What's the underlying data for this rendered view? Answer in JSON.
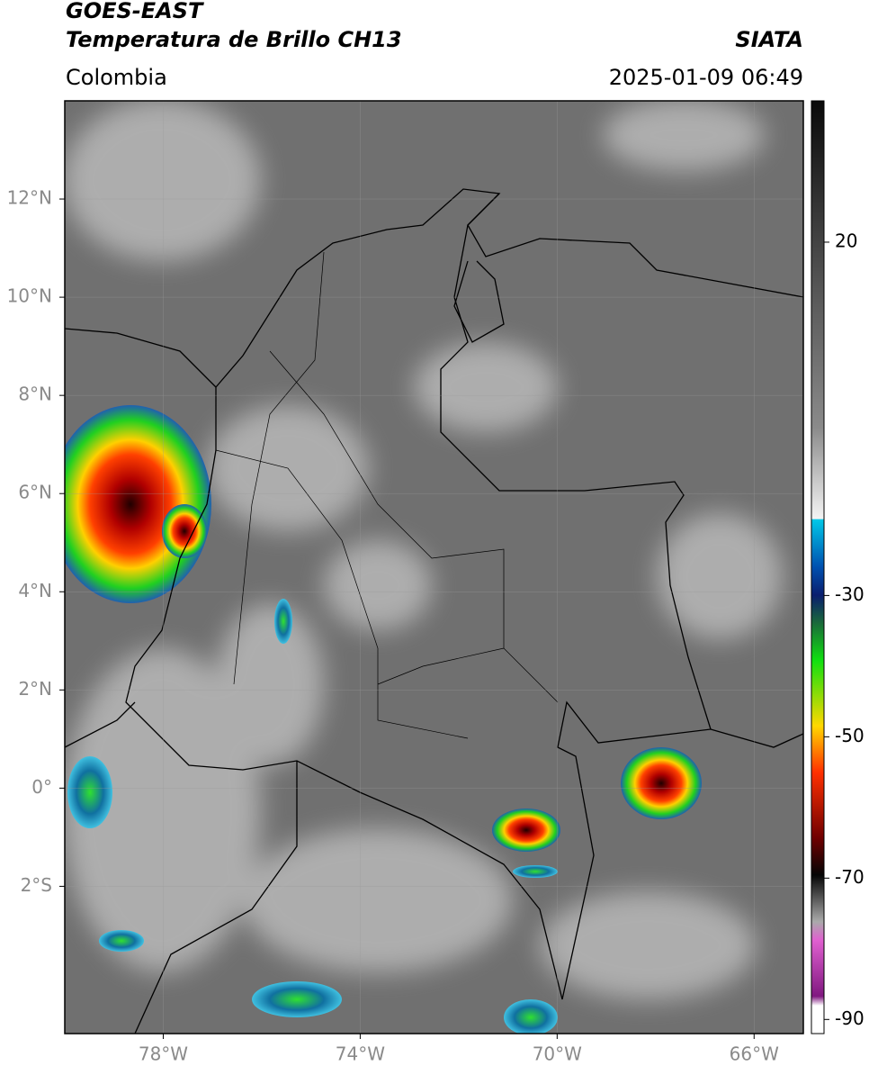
{
  "header": {
    "title": "GOES-EAST",
    "subtitle": "Temperatura de Brillo CH13",
    "source": "SIATA",
    "region": "Colombia",
    "timestamp": "2025-01-09 06:49"
  },
  "map": {
    "lon_range": [
      -80,
      -65
    ],
    "lat_range": [
      -5,
      14
    ],
    "grid": true,
    "lon_ticks": [
      {
        "value": -78,
        "label": "78°W"
      },
      {
        "value": -74,
        "label": "74°W"
      },
      {
        "value": -70,
        "label": "70°W"
      },
      {
        "value": -66,
        "label": "66°W"
      }
    ],
    "lat_ticks": [
      {
        "value": 12,
        "label": "12°N"
      },
      {
        "value": 10,
        "label": "10°N"
      },
      {
        "value": 8,
        "label": "8°N"
      },
      {
        "value": 6,
        "label": "6°N"
      },
      {
        "value": 4,
        "label": "4°N"
      },
      {
        "value": 2,
        "label": "2°N"
      },
      {
        "value": 0,
        "label": "0°"
      },
      {
        "value": -2,
        "label": "2°S"
      }
    ]
  },
  "colorbar": {
    "range": [
      -92,
      40
    ],
    "ticks": [
      20,
      -30,
      -50,
      -70,
      -90
    ]
  }
}
